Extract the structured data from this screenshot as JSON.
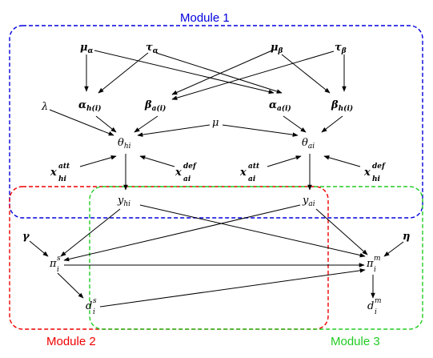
{
  "modules": [
    {
      "label": "Module 1",
      "color": "#0000dd"
    },
    {
      "label": "Module 2",
      "color": "#ee0000"
    },
    {
      "label": "Module 3",
      "color": "#22cc22"
    }
  ],
  "nodes": {
    "mu_alpha": {
      "base": "μ",
      "sub": "α",
      "bold": true
    },
    "tau_alpha": {
      "base": "τ",
      "sub": "α",
      "bold": true
    },
    "mu_beta": {
      "base": "μ",
      "sub": "β",
      "bold": true
    },
    "tau_beta": {
      "base": "τ",
      "sub": "β",
      "bold": true
    },
    "alpha_hi": {
      "base": "α",
      "sub": "h(i)",
      "bold": true
    },
    "beta_ai": {
      "base": "β",
      "sub": "a(i)",
      "bold": true
    },
    "alpha_ai": {
      "base": "α",
      "sub": "a(i)",
      "bold": true
    },
    "beta_hi": {
      "base": "β",
      "sub": "h(i)",
      "bold": true
    },
    "lambda": {
      "base": "λ"
    },
    "mu": {
      "base": "μ"
    },
    "theta_hi": {
      "base": "θ",
      "sub": "hi"
    },
    "theta_ai": {
      "base": "θ",
      "sub": "ai"
    },
    "x_att_hi": {
      "base": "x",
      "sub": "hi",
      "sup": "att",
      "bold": true
    },
    "x_def_ai": {
      "base": "x",
      "sub": "ai",
      "sup": "def",
      "bold": true
    },
    "x_att_ai": {
      "base": "x",
      "sub": "ai",
      "sup": "att",
      "bold": true
    },
    "x_def_hi": {
      "base": "x",
      "sub": "hi",
      "sup": "def",
      "bold": true
    },
    "y_hi": {
      "base": "y",
      "sub": "hi"
    },
    "y_ai": {
      "base": "y",
      "sub": "ai"
    },
    "gamma": {
      "base": "γ",
      "bold": true
    },
    "eta": {
      "base": "η",
      "bold": true
    },
    "pi_s": {
      "base": "π",
      "sub": "i",
      "sup": "s"
    },
    "pi_m": {
      "base": "π",
      "sub": "i",
      "sup": "m"
    },
    "d_s": {
      "base": "d",
      "sub": "i",
      "sup": "s"
    },
    "d_m": {
      "base": "d",
      "sub": "i",
      "sup": "m"
    }
  }
}
